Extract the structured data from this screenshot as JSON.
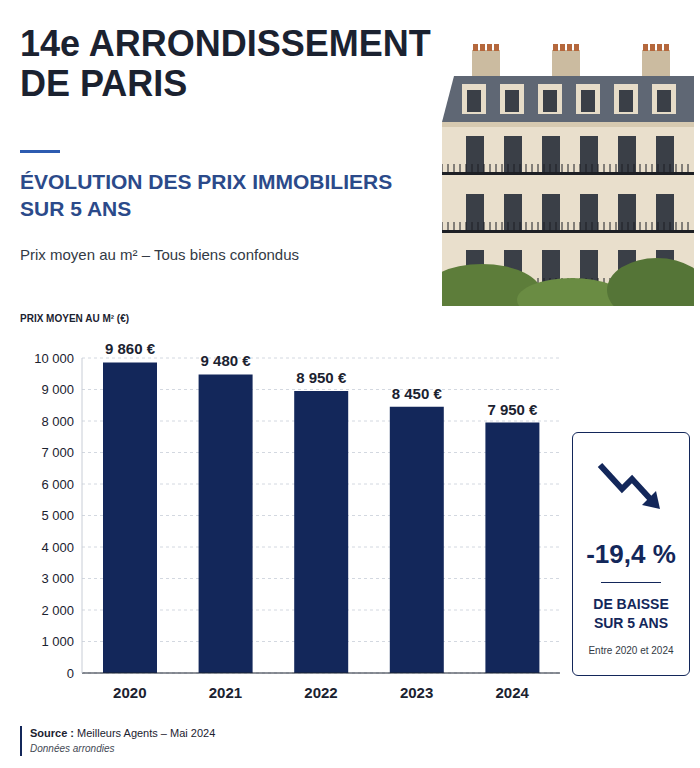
{
  "chart_data": {
    "type": "bar",
    "title": "14e ARRONDISSEMENT DE PARIS",
    "subtitle": "ÉVOLUTION DES PRIX IMMOBILIERS SUR 5 ANS",
    "description": "Prix moyen au m² – Tous biens confondus",
    "y_label": "PRIX MOYEN AU M² (€)",
    "categories": [
      "2020",
      "2021",
      "2022",
      "2023",
      "2024"
    ],
    "values": [
      9860,
      9480,
      8950,
      8450,
      7950
    ],
    "value_labels": [
      "9 860 €",
      "9 480 €",
      "8 950 €",
      "8 450 €",
      "7 950 €"
    ],
    "data_labels": true,
    "color": "#13275a",
    "ylim": [
      0,
      10000
    ],
    "yticks": [
      0,
      {
        "value": 1000,
        "label": "1 000"
      },
      {
        "value": 2000,
        "label": "2 000"
      },
      {
        "value": 3000,
        "label": "3 000"
      },
      {
        "value": 4000,
        "label": "4 000"
      },
      {
        "value": 5000,
        "label": "5 000"
      },
      {
        "value": 6000,
        "label": "6 000"
      },
      {
        "value": 7000,
        "label": "7 000"
      },
      {
        "value": 8000,
        "label": "8 000"
      },
      {
        "value": 9000,
        "label": "9 000"
      },
      {
        "value": 10000,
        "label": "10 000"
      }
    ],
    "grid": true,
    "annotation": {
      "value": "-19,4 %",
      "text": "DE BAISSE SUR 5 ANS",
      "note": "Entre 2020 et 2024"
    },
    "source_label": "Source :",
    "source": "Meilleurs Agents – Mai 2024",
    "note": "Données arrondies"
  }
}
